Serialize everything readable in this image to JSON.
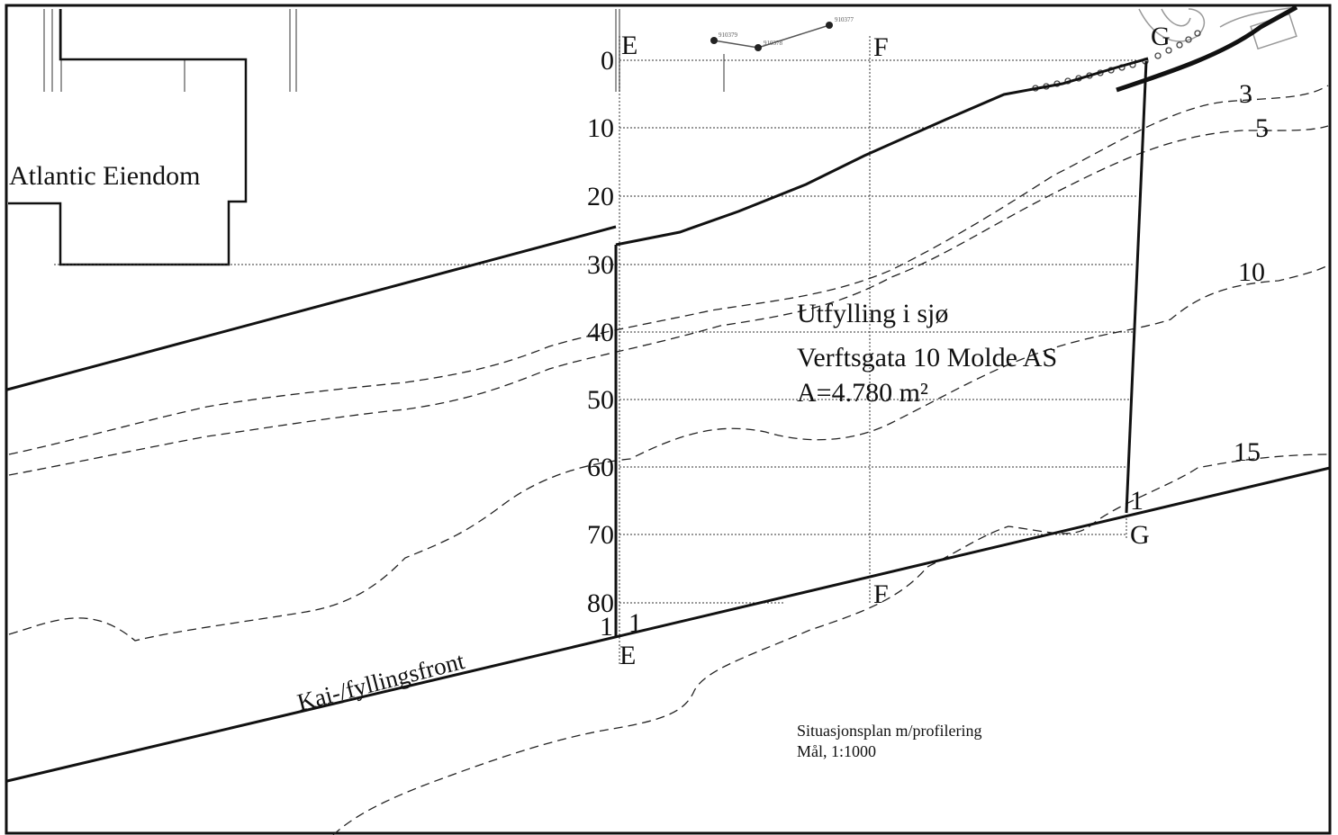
{
  "map": {
    "property_label": "Atlantic Eiendom",
    "project": {
      "line1": "Utfylling i sjø",
      "line2": "Verftsgata 10 Molde AS",
      "line3": "A=4.780 m²"
    },
    "front_label": "Kai-/fyllingsfront",
    "caption": {
      "line1": "Situasjonsplan m/profilering",
      "line2": "Mål, 1:1000"
    },
    "profile_letters": {
      "e_top": "E",
      "f_top": "F",
      "g_top": "G",
      "e_bottom": "E",
      "f_bottom": "F",
      "g_bottom": "G"
    },
    "chainage": [
      "0",
      "10",
      "20",
      "30",
      "40",
      "50",
      "60",
      "70",
      "80"
    ],
    "contours": [
      "3",
      "5",
      "10",
      "15"
    ],
    "slopes": {
      "e_left": "1",
      "e_right": "1",
      "g_right": "1"
    },
    "survey_points": [
      "910379",
      "910378",
      "910377"
    ]
  }
}
